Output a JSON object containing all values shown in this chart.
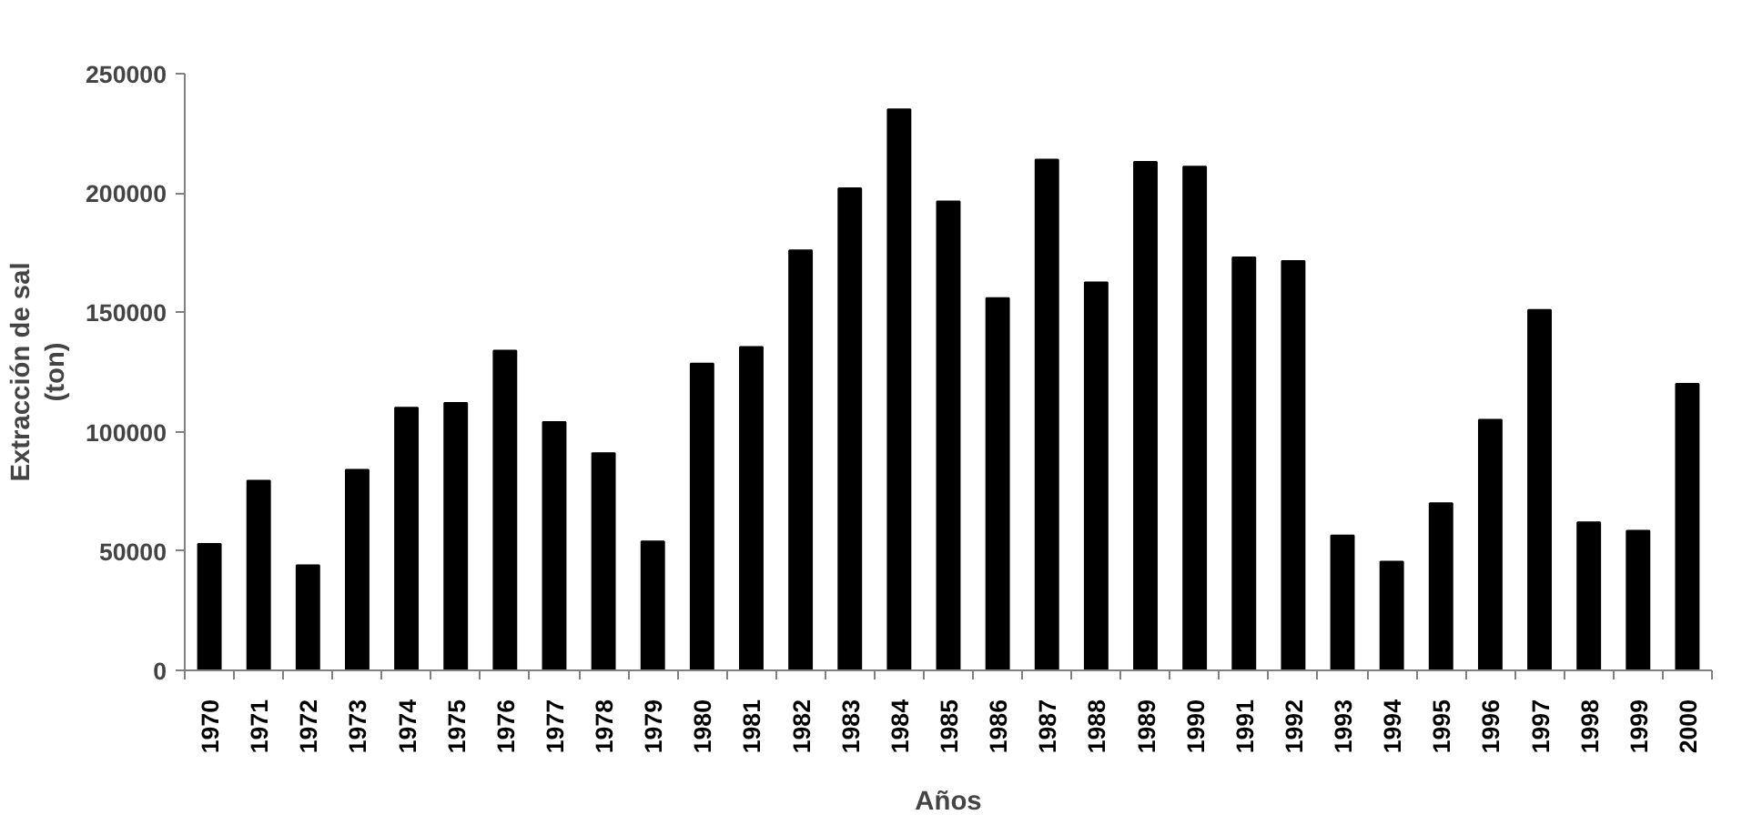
{
  "chart_data": {
    "type": "bar",
    "xlabel": "Años",
    "ylabel": "Extracción de sal\n(ton)",
    "categories": [
      "1970",
      "1971",
      "1972",
      "1973",
      "1974",
      "1975",
      "1976",
      "1977",
      "1978",
      "1979",
      "1980",
      "1981",
      "1982",
      "1983",
      "1984",
      "1985",
      "1986",
      "1987",
      "1988",
      "1989",
      "1990",
      "1991",
      "1992",
      "1993",
      "1994",
      "1995",
      "1996",
      "1997",
      "1998",
      "1999",
      "2000"
    ],
    "values": [
      53000,
      79500,
      44000,
      84000,
      110000,
      112000,
      134000,
      104000,
      91000,
      54000,
      128500,
      135500,
      176000,
      202000,
      235000,
      196500,
      156000,
      214000,
      162500,
      213000,
      211000,
      173000,
      171500,
      56500,
      45500,
      70000,
      105000,
      151000,
      62000,
      58500,
      120000
    ],
    "color": "#000000",
    "ylim": [
      0,
      250000
    ],
    "yticks": [
      0,
      50000,
      100000,
      150000,
      200000,
      250000
    ],
    "grid": false
  }
}
